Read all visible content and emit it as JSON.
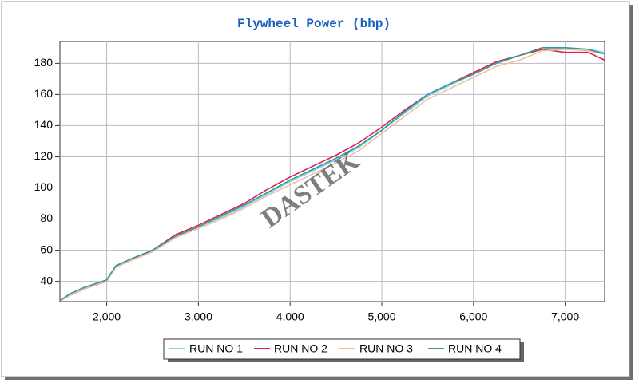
{
  "chart_data": {
    "type": "line",
    "title": "Flywheel Power (bhp)",
    "watermark": "DASTEK",
    "x": [
      1500,
      1600,
      1750,
      2000,
      2100,
      2250,
      2500,
      2750,
      3000,
      3250,
      3500,
      3750,
      4000,
      4250,
      4500,
      4750,
      5000,
      5250,
      5500,
      5750,
      6000,
      6250,
      6500,
      6750,
      7000,
      7250,
      7430
    ],
    "series": [
      {
        "name": "RUN NO 1",
        "color": "#86d3ee",
        "values": [
          28,
          31,
          35,
          41,
          50,
          54,
          60,
          69,
          75,
          81,
          88,
          96,
          104,
          111,
          118,
          126,
          137,
          148,
          159,
          166,
          173,
          180,
          185,
          189,
          190,
          189,
          187
        ]
      },
      {
        "name": "RUN NO 2",
        "color": "#e0204a",
        "values": [
          28,
          31,
          35,
          40,
          50,
          54,
          60,
          70,
          76,
          83,
          90,
          99,
          107,
          114,
          121,
          129,
          139,
          150,
          160,
          167,
          174,
          181,
          185,
          189,
          187,
          187,
          182
        ]
      },
      {
        "name": "RUN NO 3",
        "color": "#f3bf98",
        "values": [
          28,
          31,
          35,
          40,
          49,
          53,
          59,
          68,
          74,
          80,
          87,
          95,
          102,
          109,
          116,
          124,
          135,
          146,
          157,
          164,
          171,
          178,
          182,
          188,
          189,
          188,
          186
        ]
      },
      {
        "name": "RUN NO 4",
        "color": "#2a9d9f",
        "values": [
          28,
          32,
          36,
          41,
          50,
          54,
          60,
          69,
          75,
          82,
          89,
          97,
          105,
          112,
          119,
          127,
          137,
          149,
          160,
          167,
          173,
          180,
          185,
          190,
          190,
          189,
          186
        ]
      }
    ],
    "xlim": [
      1490,
      7430
    ],
    "ylim": [
      27,
      194
    ],
    "xticks": [
      {
        "value": 2000,
        "label": "2,000"
      },
      {
        "value": 3000,
        "label": "3,000"
      },
      {
        "value": 4000,
        "label": "4,000"
      },
      {
        "value": 5000,
        "label": "5,000"
      },
      {
        "value": 6000,
        "label": "6,000"
      },
      {
        "value": 7000,
        "label": "7,000"
      }
    ],
    "yticks": [
      40,
      60,
      80,
      100,
      120,
      140,
      160,
      180
    ],
    "grid": true,
    "legend": "bottom"
  }
}
